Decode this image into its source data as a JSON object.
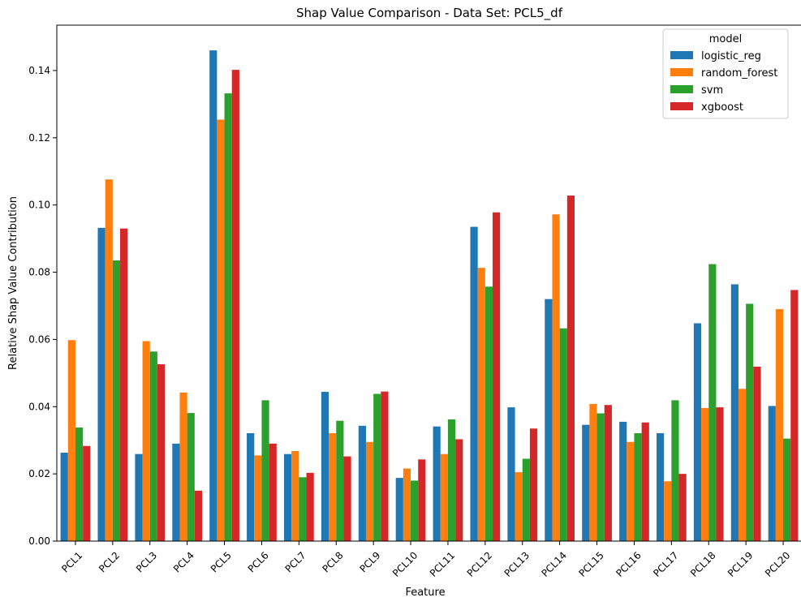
{
  "chart_data": {
    "type": "bar",
    "title": "Shap Value Comparison - Data Set: PCL5_df",
    "xlabel": "Feature",
    "ylabel": "Relative Shap Value Contribution",
    "ylim": [
      0,
      0.1535
    ],
    "yticks": [
      "0.00",
      "0.02",
      "0.04",
      "0.06",
      "0.08",
      "0.10",
      "0.12",
      "0.14"
    ],
    "categories": [
      "PCL1",
      "PCL2",
      "PCL3",
      "PCL4",
      "PCL5",
      "PCL6",
      "PCL7",
      "PCL8",
      "PCL9",
      "PCL10",
      "PCL11",
      "PCL12",
      "PCL13",
      "PCL14",
      "PCL15",
      "PCL16",
      "PCL17",
      "PCL18",
      "PCL19",
      "PCL20"
    ],
    "legend": {
      "title": "model",
      "placement": "top-right"
    },
    "grid": false,
    "series": [
      {
        "name": "logistic_reg",
        "color": "#1f77b4",
        "values": [
          0.0263,
          0.0932,
          0.0259,
          0.029,
          0.146,
          0.0321,
          0.0259,
          0.0444,
          0.0343,
          0.0188,
          0.0341,
          0.0935,
          0.0398,
          0.072,
          0.0346,
          0.0355,
          0.0321,
          0.0648,
          0.0764,
          0.0402
        ]
      },
      {
        "name": "random_forest",
        "color": "#ff7f0e",
        "values": [
          0.0598,
          0.1076,
          0.0595,
          0.0442,
          0.1254,
          0.0255,
          0.0268,
          0.0321,
          0.0295,
          0.0216,
          0.0259,
          0.0813,
          0.0205,
          0.0972,
          0.0408,
          0.0295,
          0.0178,
          0.0396,
          0.0453,
          0.069
        ]
      },
      {
        "name": "svm",
        "color": "#2ca02c",
        "values": [
          0.0338,
          0.0835,
          0.0564,
          0.0381,
          0.1332,
          0.0419,
          0.019,
          0.0358,
          0.0438,
          0.018,
          0.0362,
          0.0757,
          0.0245,
          0.0633,
          0.038,
          0.0321,
          0.0419,
          0.0824,
          0.0706,
          0.0305
        ]
      },
      {
        "name": "xgboost",
        "color": "#d62728",
        "values": [
          0.0283,
          0.093,
          0.0526,
          0.015,
          0.1402,
          0.029,
          0.0203,
          0.0252,
          0.0445,
          0.0243,
          0.0303,
          0.0978,
          0.0335,
          0.1028,
          0.0405,
          0.0353,
          0.02,
          0.0398,
          0.0519,
          0.0747
        ]
      }
    ]
  }
}
